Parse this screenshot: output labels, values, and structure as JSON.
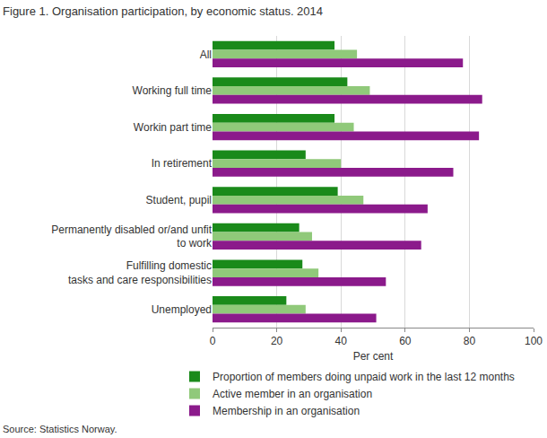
{
  "chart_data": {
    "type": "bar",
    "orientation": "horizontal",
    "title": "Figure 1. Organisation participation, by economic status. 2014",
    "x_label": "Per cent",
    "source": "Source: Statistics Norway.",
    "categories": [
      "All",
      "Working full time",
      "Workin part time",
      "In retirement",
      "Student, pupil",
      "Permanently disabled or/and unfit\nto work",
      "Fulfilling domestic\ntasks and care responsibilities",
      "Unemployed"
    ],
    "series": [
      {
        "name": "Proportion of members doing unpaid work in the last 12 months",
        "color": "#1a8a1a",
        "values": [
          38,
          42,
          38,
          29,
          39,
          27,
          28,
          23
        ]
      },
      {
        "name": "Active member in an organisation",
        "color": "#90c97a",
        "values": [
          45,
          49,
          44,
          40,
          47,
          31,
          33,
          29
        ]
      },
      {
        "name": "Membership in an organisation",
        "color": "#8b1a8b",
        "values": [
          78,
          84,
          83,
          75,
          67,
          65,
          54,
          51
        ]
      }
    ],
    "xlim": [
      0,
      100
    ],
    "xticks": [
      0,
      20,
      40,
      60,
      80,
      100
    ],
    "grid": true,
    "legend": "bottom"
  }
}
